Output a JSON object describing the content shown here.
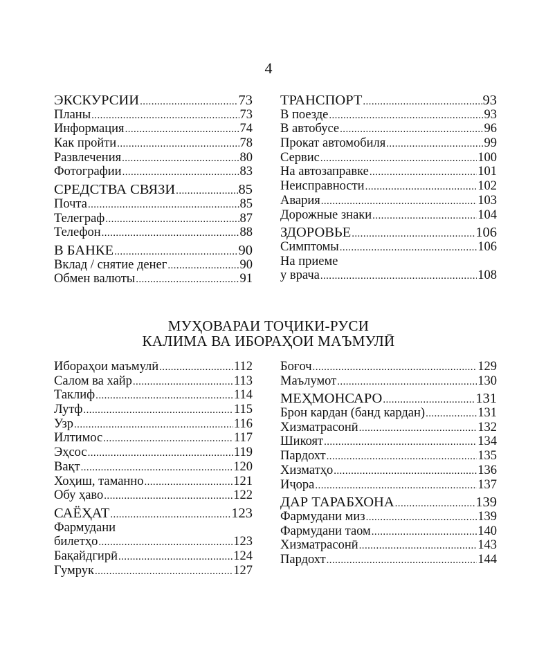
{
  "page_number": "4",
  "top_left": [
    [
      {
        "label": "ЭКСКУРСИИ",
        "page": "73",
        "head": true
      },
      {
        "label": "Планы",
        "page": "73"
      },
      {
        "label": "Информация",
        "page": "74"
      },
      {
        "label": "Как пройти",
        "page": "78"
      },
      {
        "label": "Развлечения",
        "page": "80"
      },
      {
        "label": "Фотографии",
        "page": "83"
      }
    ],
    [
      {
        "label": "СРЕДСТВА СВЯЗИ",
        "page": "85",
        "head": true
      },
      {
        "label": "Почта",
        "page": "85"
      },
      {
        "label": "Телеграф",
        "page": "87"
      },
      {
        "label": "Телефон",
        "page": "88"
      }
    ],
    [
      {
        "label": "В БАНКЕ",
        "page": "90",
        "head": true
      },
      {
        "label": "Вклад / снятие денег",
        "page": "90"
      },
      {
        "label": "Обмен валюты",
        "page": "91"
      }
    ]
  ],
  "top_right": [
    [
      {
        "label": "ТРАНСПОРТ",
        "page": "93",
        "head": true
      },
      {
        "label": "В поезде",
        "page": "93"
      },
      {
        "label": "В автобусе",
        "page": "96"
      },
      {
        "label": "Прокат автомобиля",
        "page": "99"
      },
      {
        "label": "Сервис",
        "page": "100"
      },
      {
        "label": "На автозаправке",
        "page": "101"
      },
      {
        "label": "Неисправности",
        "page": "102"
      },
      {
        "label": "Авария",
        "page": "103"
      },
      {
        "label": "Дорожные знаки",
        "page": "104"
      }
    ],
    [
      {
        "label": "ЗДОРОВЬЕ",
        "page": "106",
        "head": true
      },
      {
        "label": "Симптомы",
        "page": "106"
      },
      {
        "label": "На приеме",
        "page": ""
      },
      {
        "label": "у врача",
        "page": "108"
      }
    ]
  ],
  "section_title": [
    "МУҲОВАРАИ ТОҶИКИ-РУСИ",
    "КАЛИМА ВА ИБОРАҲОИ МАЪМУЛӢ"
  ],
  "bottom_left": [
    [
      {
        "label": "Ибораҳои маъмулӣ",
        "page": "112"
      },
      {
        "label": "Салом ва хайр",
        "page": "113"
      },
      {
        "label": "Таклиф",
        "page": "114"
      },
      {
        "label": "Лутф",
        "page": "115"
      },
      {
        "label": "Узр",
        "page": "116"
      },
      {
        "label": "Илтимос",
        "page": "117"
      },
      {
        "label": "Эҳсос",
        "page": "119"
      },
      {
        "label": "Вақт",
        "page": "120"
      },
      {
        "label": "Хоҳиш, таманно",
        "page": "121"
      },
      {
        "label": "Обу ҳаво",
        "page": "122"
      }
    ],
    [
      {
        "label": "САЁҲАТ",
        "page": "123",
        "head": true
      },
      {
        "label": "Фармудани",
        "page": ""
      },
      {
        "label": "билетҳо",
        "page": "123"
      },
      {
        "label": "Бақайдгирӣ",
        "page": "124"
      },
      {
        "label": "Гумрук",
        "page": "127"
      }
    ]
  ],
  "bottom_right": [
    [
      {
        "label": "Боғоч",
        "page": "129"
      },
      {
        "label": "Маълумот",
        "page": "130"
      }
    ],
    [
      {
        "label": "МЕҲМОНСАРО",
        "page": "131",
        "head": true
      },
      {
        "label": "Брон кардан (банд кардан)",
        "page": "131"
      },
      {
        "label": "Хизматрасонӣ",
        "page": "132"
      },
      {
        "label": "Шикоят",
        "page": "134"
      },
      {
        "label": "Пардохт",
        "page": "135"
      },
      {
        "label": "Хизматҳо",
        "page": "136"
      },
      {
        "label": "Иҷора",
        "page": "137"
      }
    ],
    [
      {
        "label": "ДАР ТАРАБХОНА",
        "page": "139",
        "head": true
      },
      {
        "label": "Фармудани миз",
        "page": "139"
      },
      {
        "label": "Фармудани таом",
        "page": "140"
      },
      {
        "label": "Хизматрасонӣ",
        "page": "143"
      },
      {
        "label": "Пардохт",
        "page": "144"
      }
    ]
  ]
}
